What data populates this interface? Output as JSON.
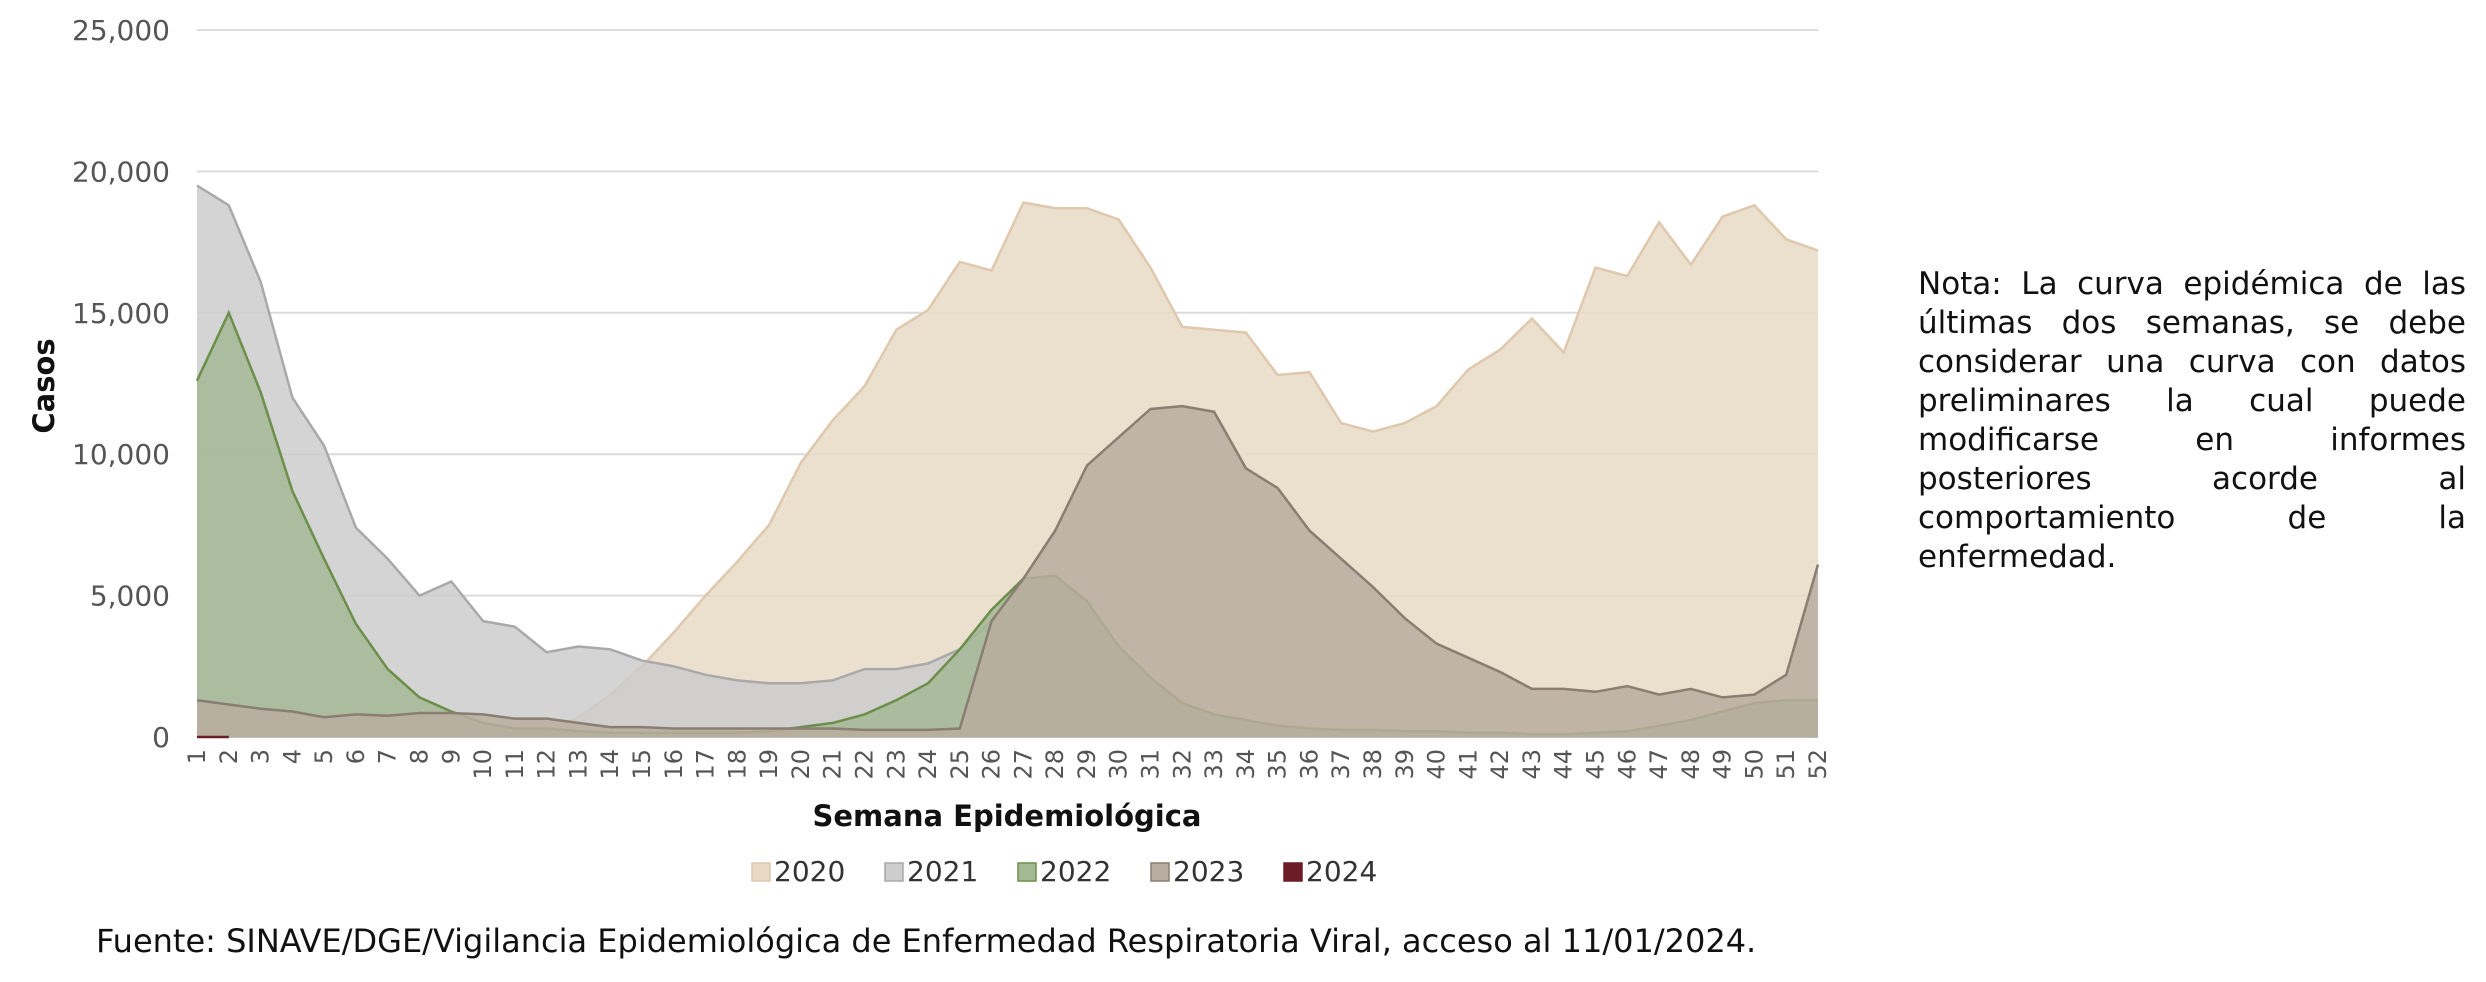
{
  "chart_data": {
    "type": "area",
    "xlabel": "Semana Epidemiológica",
    "ylabel": "Casos",
    "ylim": [
      0,
      25000
    ],
    "yticks": [
      0,
      5000,
      10000,
      15000,
      20000,
      25000
    ],
    "ytick_labels": [
      "0",
      "5,000",
      "10,000",
      "15,000",
      "20,000",
      "25,000"
    ],
    "x": [
      1,
      2,
      3,
      4,
      5,
      6,
      7,
      8,
      9,
      10,
      11,
      12,
      13,
      14,
      15,
      16,
      17,
      18,
      19,
      20,
      21,
      22,
      23,
      24,
      25,
      26,
      27,
      28,
      29,
      30,
      31,
      32,
      33,
      34,
      35,
      36,
      37,
      38,
      39,
      40,
      41,
      42,
      43,
      44,
      45,
      46,
      47,
      48,
      49,
      50,
      51,
      52
    ],
    "grid": true,
    "legend_position": "bottom",
    "series": [
      {
        "name": "2020",
        "color": "#e8d9c5",
        "stroke": "#dfc8ad",
        "values": [
          200,
          200,
          200,
          200,
          200,
          200,
          200,
          200,
          200,
          200,
          200,
          200,
          700,
          1500,
          2500,
          3700,
          5000,
          6200,
          7500,
          9700,
          11200,
          12400,
          14400,
          15100,
          16800,
          16500,
          18900,
          18700,
          18700,
          18300,
          16600,
          14500,
          14400,
          14300,
          12800,
          12900,
          11100,
          10800,
          11100,
          11700,
          13000,
          13700,
          14800,
          13600,
          16600,
          16300,
          18200,
          16700,
          18400,
          18800,
          17600,
          17200
        ]
      },
      {
        "name": "2021",
        "color": "#cdcdcd",
        "stroke": "#a9a9a9",
        "values": [
          19500,
          18800,
          16100,
          12000,
          10300,
          7400,
          6300,
          5000,
          5500,
          4100,
          3900,
          3000,
          3200,
          3100,
          2700,
          2500,
          2200,
          2000,
          1900,
          1900,
          2000,
          2400,
          2400,
          2600,
          3100,
          4100,
          null,
          null,
          null,
          null,
          null,
          null,
          null,
          null,
          null,
          null,
          null,
          null,
          null,
          null,
          null,
          null,
          null,
          null,
          null,
          null,
          null,
          null,
          null,
          null,
          null,
          null
        ]
      },
      {
        "name": "2022",
        "color": "#a3b994",
        "stroke": "#6b8f4a",
        "values": [
          12600,
          15000,
          12200,
          8700,
          6300,
          4000,
          2400,
          1400,
          900,
          500,
          300,
          300,
          200,
          150,
          150,
          150,
          150,
          150,
          200,
          350,
          500,
          800,
          1300,
          1900,
          3100,
          4500,
          5600,
          5700,
          4800,
          3200,
          2100,
          1200,
          800,
          600,
          400,
          300,
          250,
          250,
          200,
          200,
          150,
          150,
          100,
          100,
          150,
          200,
          400,
          600,
          900,
          1200,
          1300,
          1300
        ]
      },
      {
        "name": "2023",
        "color": "#b9ad9f",
        "stroke": "#8a7e72",
        "values": [
          1300,
          1150,
          1000,
          900,
          700,
          800,
          750,
          850,
          850,
          800,
          650,
          650,
          500,
          350,
          350,
          300,
          300,
          300,
          300,
          300,
          300,
          250,
          250,
          250,
          300,
          4100,
          5600,
          7300,
          9600,
          10600,
          11600,
          11700,
          11500,
          9500,
          8800,
          7300,
          6300,
          5300,
          4200,
          3300,
          2800,
          2300,
          1700,
          1700,
          1600,
          1800,
          1500,
          1700,
          1400,
          1500,
          2200,
          6100
        ]
      },
      {
        "name": "2024",
        "color": "#6b1c26",
        "stroke": "#6b1c26",
        "values": [
          0,
          0,
          null,
          null,
          null,
          null,
          null,
          null,
          null,
          null,
          null,
          null,
          null,
          null,
          null,
          null,
          null,
          null,
          null,
          null,
          null,
          null,
          null,
          null,
          null,
          null,
          null,
          null,
          null,
          null,
          null,
          null,
          null,
          null,
          null,
          null,
          null,
          null,
          null,
          null,
          null,
          null,
          null,
          null,
          null,
          null,
          null,
          null,
          null,
          null,
          null,
          null
        ]
      }
    ]
  },
  "note": "Nota: La curva epidémica de las últimas dos semanas, se debe considerar una curva con datos preliminares la cual puede modificarse en informes posteriores acorde al comportamiento de la enfermedad.",
  "source": "Fuente: SINAVE/DGE/Vigilancia Epidemiológica de Enfermedad Respiratoria Viral, acceso al 11/01/2024."
}
